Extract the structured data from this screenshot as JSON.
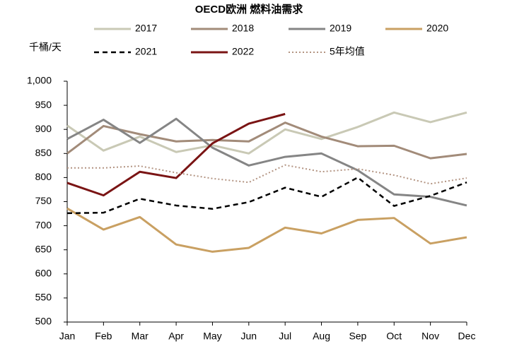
{
  "chart_data": {
    "type": "line",
    "title": "OECD欧洲 燃料油需求",
    "y_label": "千桶/天",
    "categories": [
      "Jan",
      "Feb",
      "Mar",
      "Apr",
      "May",
      "Jun",
      "Jul",
      "Aug",
      "Sep",
      "Oct",
      "Nov",
      "Dec"
    ],
    "ylim": [
      500,
      1000
    ],
    "yticks": [
      500,
      550,
      600,
      650,
      700,
      750,
      800,
      850,
      900,
      950,
      {
        "value": 1000,
        "label": "1,000"
      }
    ],
    "grid": false,
    "series": [
      {
        "name": "2017",
        "color": "#c9c9b5",
        "style": "solid",
        "values": [
          908,
          856,
          885,
          853,
          867,
          850,
          900,
          880,
          905,
          935,
          915,
          935
        ]
      },
      {
        "name": "2018",
        "color": "#a28b79",
        "style": "solid",
        "values": [
          850,
          907,
          890,
          875,
          878,
          875,
          914,
          885,
          865,
          866,
          840,
          849
        ]
      },
      {
        "name": "2019",
        "color": "#858585",
        "style": "solid",
        "values": [
          880,
          920,
          872,
          922,
          862,
          825,
          843,
          850,
          815,
          765,
          760,
          742
        ]
      },
      {
        "name": "2020",
        "color": "#c9a062",
        "style": "solid",
        "values": [
          736,
          692,
          718,
          661,
          646,
          654,
          696,
          684,
          712,
          716,
          663,
          676
        ]
      },
      {
        "name": "2021",
        "color": "#000000",
        "style": "dashed",
        "values": [
          726,
          727,
          756,
          742,
          735,
          749,
          779,
          760,
          800,
          741,
          762,
          790
        ]
      },
      {
        "name": "2022",
        "color": "#7a1414",
        "style": "solid",
        "values": [
          789,
          763,
          812,
          799,
          871,
          912,
          932,
          null,
          null,
          null,
          null,
          null
        ]
      },
      {
        "name": "5年均值",
        "color": "#b39482",
        "style": "dotted",
        "values": [
          820,
          820,
          824,
          810,
          798,
          790,
          826,
          812,
          818,
          805,
          787,
          799
        ]
      }
    ]
  }
}
